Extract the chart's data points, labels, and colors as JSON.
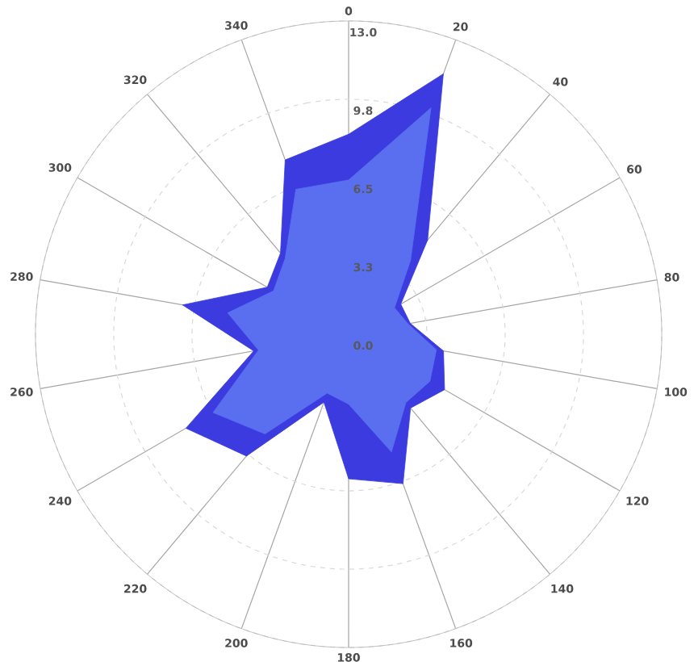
{
  "chart_data": {
    "type": "radar",
    "categories": [
      "0",
      "20",
      "40",
      "60",
      "80",
      "100",
      "120",
      "140",
      "160",
      "180",
      "200",
      "220",
      "240",
      "260",
      "280",
      "300",
      "320",
      "340"
    ],
    "series": [
      {
        "color": "#3b3be0",
        "values": [
          8.3,
          11.5,
          5.1,
          2.5,
          2.6,
          4.0,
          4.6,
          4.0,
          6.6,
          6.0,
          3.0,
          6.6,
          7.8,
          4.0,
          7.0,
          3.9,
          4.4,
          7.7
        ]
      },
      {
        "color": "#5a6ff0",
        "values": [
          6.4,
          10.0,
          4.0,
          2.2,
          2.5,
          3.7,
          3.9,
          3.7,
          5.2,
          2.9,
          2.6,
          5.4,
          6.5,
          3.8,
          5.1,
          3.6,
          4.1,
          6.4
        ]
      }
    ],
    "ylim": [
      0,
      13
    ],
    "yticks": [
      {
        "value": 0,
        "label": "0.0"
      },
      {
        "value": 3.25,
        "label": "3.3"
      },
      {
        "value": 6.5,
        "label": "6.5"
      },
      {
        "value": 9.75,
        "label": "9.8"
      },
      {
        "value": 13,
        "label": "13.0"
      }
    ],
    "grid": true
  }
}
